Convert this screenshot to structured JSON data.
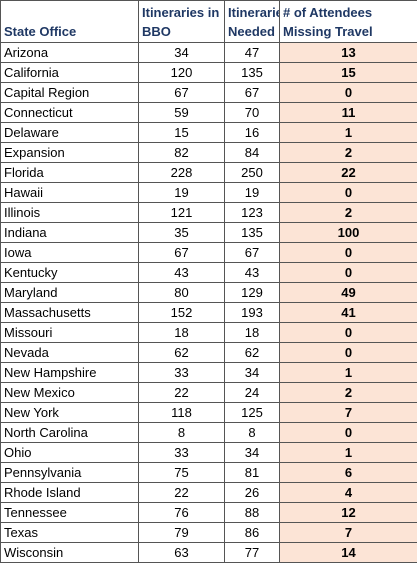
{
  "table": {
    "headers": [
      "State Office",
      "Itineraries in BBO",
      "Itineraries Needed",
      "# of Attendees Missing Travel"
    ],
    "rows": [
      [
        "Arizona",
        34,
        47,
        13
      ],
      [
        "California",
        120,
        135,
        15
      ],
      [
        "Capital Region",
        67,
        67,
        0
      ],
      [
        "Connecticut",
        59,
        70,
        11
      ],
      [
        "Delaware",
        15,
        16,
        1
      ],
      [
        "Expansion",
        82,
        84,
        2
      ],
      [
        "Florida",
        228,
        250,
        22
      ],
      [
        "Hawaii",
        19,
        19,
        0
      ],
      [
        "Illinois",
        121,
        123,
        2
      ],
      [
        "Indiana",
        35,
        135,
        100
      ],
      [
        "Iowa",
        67,
        67,
        0
      ],
      [
        "Kentucky",
        43,
        43,
        0
      ],
      [
        "Maryland",
        80,
        129,
        49
      ],
      [
        "Massachusetts",
        152,
        193,
        41
      ],
      [
        "Missouri",
        18,
        18,
        0
      ],
      [
        "Nevada",
        62,
        62,
        0
      ],
      [
        "New Hampshire",
        33,
        34,
        1
      ],
      [
        "New Mexico",
        22,
        24,
        2
      ],
      [
        "New York",
        118,
        125,
        7
      ],
      [
        "North Carolina",
        8,
        8,
        0
      ],
      [
        "Ohio",
        33,
        34,
        1
      ],
      [
        "Pennsylvania",
        75,
        81,
        6
      ],
      [
        "Rhode Island",
        22,
        26,
        4
      ],
      [
        "Tennessee",
        76,
        88,
        12
      ],
      [
        "Texas",
        79,
        86,
        7
      ],
      [
        "Wisconsin",
        63,
        77,
        14
      ]
    ]
  }
}
